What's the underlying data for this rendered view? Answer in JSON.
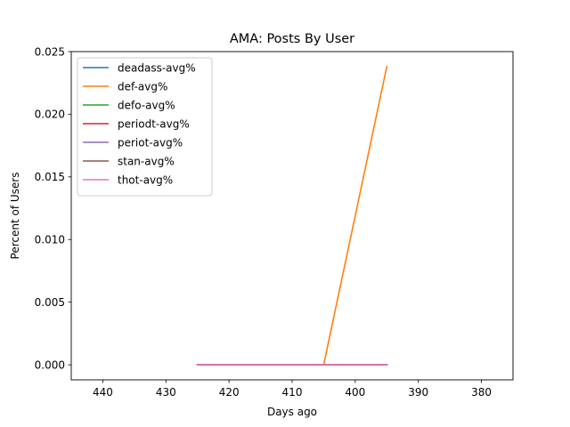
{
  "chart_data": {
    "type": "line",
    "title": "AMA: Posts By User",
    "xlabel": "Days ago",
    "ylabel": "Percent of Users",
    "xlim": [
      445,
      375
    ],
    "ylim": [
      -0.0012,
      0.025
    ],
    "x_inverted": true,
    "xticks": [
      440,
      430,
      420,
      410,
      400,
      390,
      380
    ],
    "xtick_labels": [
      "440",
      "430",
      "420",
      "410",
      "400",
      "390",
      "380"
    ],
    "yticks": [
      0.0,
      0.005,
      0.01,
      0.015,
      0.02,
      0.025
    ],
    "ytick_labels": [
      "0.000",
      "0.005",
      "0.010",
      "0.015",
      "0.020",
      "0.025"
    ],
    "grid": false,
    "legend_position": "top-left",
    "series": [
      {
        "name": "deadass-avg%",
        "color": "#1f77b4",
        "x": [
          425,
          415,
          405,
          395
        ],
        "y": [
          0.0,
          0.0,
          0.0,
          0.0
        ]
      },
      {
        "name": "def-avg%",
        "color": "#ff7f0e",
        "x": [
          425,
          415,
          405,
          395
        ],
        "y": [
          0.0,
          0.0,
          0.0,
          0.0238
        ]
      },
      {
        "name": "defo-avg%",
        "color": "#2ca02c",
        "x": [
          425,
          415,
          405,
          395
        ],
        "y": [
          0.0,
          0.0,
          0.0,
          0.0
        ]
      },
      {
        "name": "periodt-avg%",
        "color": "#d62728",
        "x": [
          425,
          415,
          405,
          395
        ],
        "y": [
          0.0,
          0.0,
          0.0,
          0.0
        ]
      },
      {
        "name": "periot-avg%",
        "color": "#9467bd",
        "x": [
          425,
          415,
          405,
          395
        ],
        "y": [
          0.0,
          0.0,
          0.0,
          0.0
        ]
      },
      {
        "name": "stan-avg%",
        "color": "#8c564b",
        "x": [
          425,
          415,
          405,
          395
        ],
        "y": [
          0.0,
          0.0,
          0.0,
          0.0
        ]
      },
      {
        "name": "thot-avg%",
        "color": "#e377c2",
        "x": [
          425,
          415,
          405,
          395
        ],
        "y": [
          0.0,
          0.0,
          0.0,
          0.0
        ]
      }
    ]
  }
}
